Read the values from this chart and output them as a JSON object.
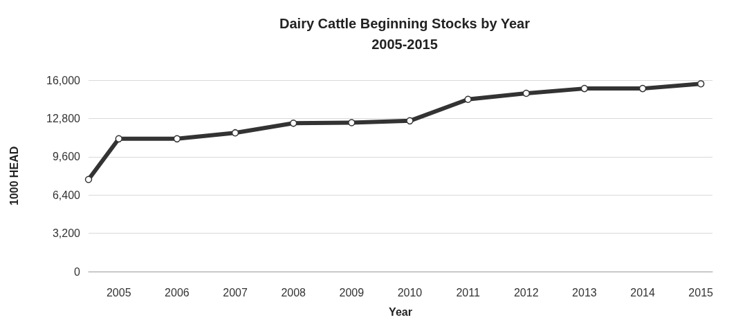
{
  "chart_data": {
    "type": "line",
    "title": "Dairy Cattle Beginning Stocks by Year\n2005-2015",
    "xlabel": "Year",
    "ylabel": "1000 HEAD",
    "xlim": [
      2004.48,
      2015.2
    ],
    "xticks": [
      2005,
      2006,
      2007,
      2008,
      2009,
      2010,
      2011,
      2012,
      2013,
      2014,
      2015
    ],
    "ylim": [
      0,
      16000
    ],
    "yticks": [
      {
        "value": 0,
        "label": "0"
      },
      {
        "value": 3200,
        "label": "3,200"
      },
      {
        "value": 6400,
        "label": "6,400"
      },
      {
        "value": 9600,
        "label": "9,600"
      },
      {
        "value": 12800,
        "label": "12,800"
      },
      {
        "value": 16000,
        "label": "16,000"
      }
    ],
    "grid": "y",
    "line_style": "solid",
    "marker": "circle",
    "series": [
      {
        "color": "#333333",
        "x": [
          2004.48,
          2005,
          2006,
          2007,
          2008,
          2009,
          2010,
          2011,
          2012,
          2013,
          2014,
          2015
        ],
        "values": [
          7700,
          11100,
          11100,
          11600,
          12400,
          12450,
          12600,
          14400,
          14900,
          15300,
          15300,
          15700
        ]
      }
    ]
  }
}
